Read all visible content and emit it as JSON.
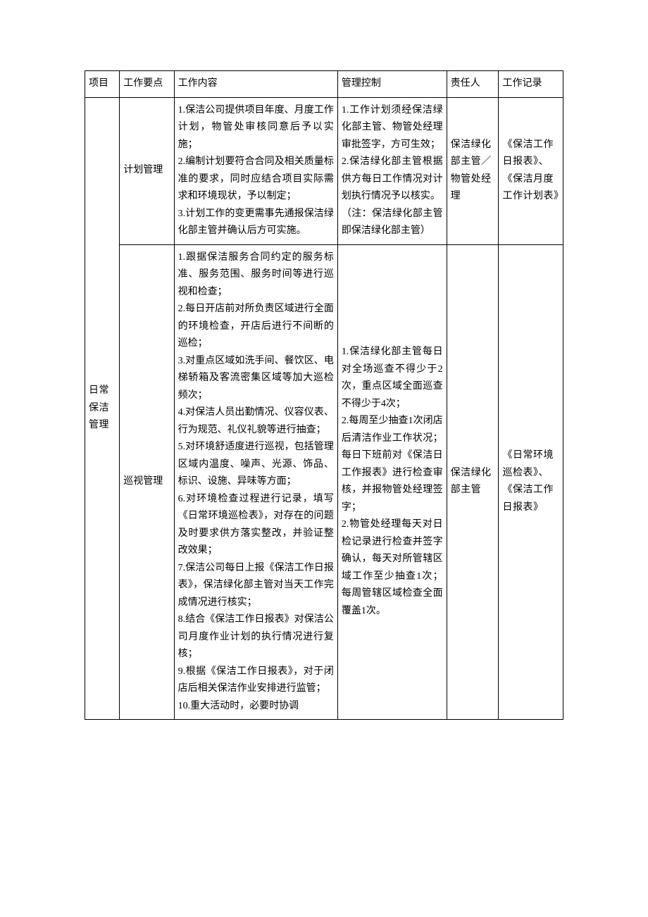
{
  "table": {
    "headers": {
      "project": "项目",
      "point": "工作要点",
      "content": "工作内容",
      "control": "管理控制",
      "owner": "责任人",
      "record": "工作记录"
    },
    "rows": [
      {
        "project": "日常保洁管理",
        "point": "计划管理",
        "content": "1.保洁公司提供项目年度、月度工作计划，物管处审核同意后予以实施；\n2.编制计划要符合合同及相关质量标准的要求，同时应结合项目实际需求和环境现状，予以制定；\n3.计划工作的变更需事先通报保洁绿化部主管并确认后方可实施。",
        "control": "1.工作计划须经保洁绿化部主管、物管处经理审批签字，方可生效；\n2.保洁绿化部主管根据供方每日工作情况对计划执行情况予以核实。\n（注：保洁绿化部主管即保洁绿化部主管）",
        "owner": "保洁绿化部主管／物管处经理",
        "record": "《保洁工作日报表》、《保洁月度工作计划表》"
      },
      {
        "project": "",
        "point": "巡视管理",
        "content": "1.跟据保洁服务合同约定的服务标准、服务范围、服务时间等进行巡视和检查；\n2.每日开店前对所负责区域进行全面的环境检查，开店后进行不间断的巡检；\n3.对重点区域如洗手间、餐饮区、电梯轿箱及客流密集区域等加大巡检频次；\n4.对保洁人员出勤情况、仪容仪表、行为规范、礼仪礼貌等进行抽查；\n5.对环境舒适度进行巡视，包括管理区域内温度、噪声、光源、饰品、标识、设施、异味等方面；\n6.对环境检查过程进行记录，填写《日常环境巡检表》，对存在的问题及时要求供方落实整改，并验证整改效果；\n7.保洁公司每日上报《保洁工作日报表》，保洁绿化部主管对当天工作完成情况进行核实；\n8.结合《保洁工作日报表》对保洁公司月度作业计划的执行情况进行复核；\n9.根据《保洁工作日报表》，对于闭店后相关保洁作业安排进行监管；\n10.重大活动时，必要时协调",
        "control": "1.保洁绿化部主管每日对全场巡查不得少于2次，重点区域全面巡查不得少于4次；\n2.每周至少抽查1次闭店后清洁作业工作状况；每日下班前对《保洁日工作报表》进行检查审核，并报物管处经理签字；\n2.物管处经理每天对日检记录进行检查并签字确认，每天对所管辖区域工作至少抽查1次；每周管辖区域检查全面覆盖1次。",
        "owner": "保洁绿化部主管",
        "record": "《日常环境巡检表》、《保洁工作日报表》"
      }
    ],
    "styling": {
      "border_color": "#000000",
      "background_color": "#ffffff",
      "text_color": "#000000",
      "font_size": 14,
      "line_height": 1.75,
      "font_family": "SimSun",
      "column_widths_pct": [
        7,
        11,
        33,
        22,
        10.5,
        13
      ],
      "cell_padding": "6px 5px",
      "project_rowspan": 2
    }
  }
}
